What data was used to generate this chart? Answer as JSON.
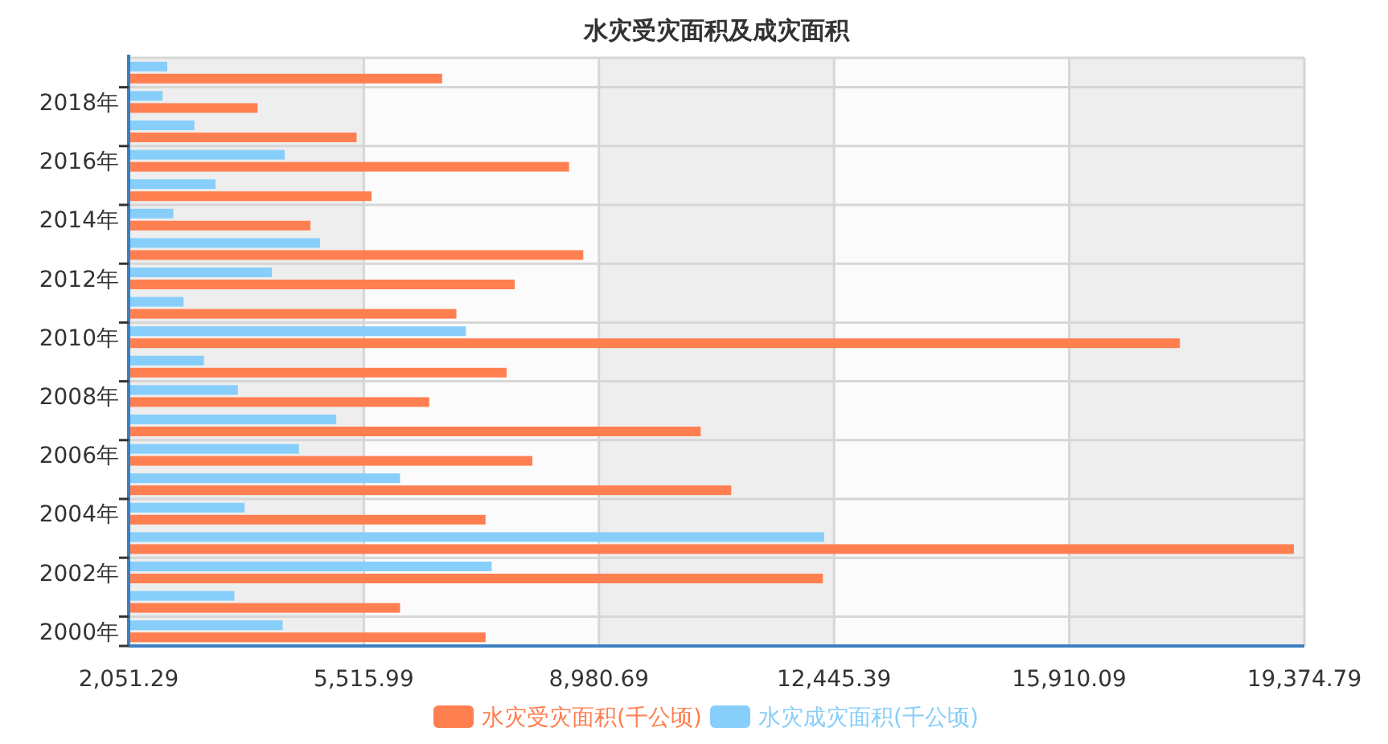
{
  "chart_data": {
    "type": "bar",
    "orientation": "horizontal",
    "title": "水灾受灾面积及成灾面积",
    "categories": [
      null,
      "2018年",
      null,
      "2016年",
      null,
      "2014年",
      null,
      "2012年",
      null,
      "2010年",
      null,
      "2008年",
      null,
      "2006年",
      null,
      "2004年",
      null,
      "2002年",
      null,
      "2000年"
    ],
    "series": [
      {
        "name": "水灾受灾面积(千公顷)",
        "color": "#ff7f50",
        "values": [
          6670,
          3950,
          5410,
          8540,
          5630,
          4730,
          8750,
          7740,
          6880,
          17540,
          7620,
          6480,
          10480,
          8000,
          10930,
          7310,
          19220,
          12280,
          6050,
          7310
        ]
      },
      {
        "name": "水灾成灾面积(千公顷)",
        "color": "#87cefa",
        "values": [
          2620,
          2550,
          3020,
          4350,
          3330,
          2710,
          4870,
          4160,
          2860,
          7020,
          3160,
          3660,
          5110,
          4560,
          6050,
          3760,
          12300,
          7400,
          3610,
          4320
        ]
      }
    ],
    "xlim": [
      2051.29,
      19374.79
    ],
    "xticks": [
      {
        "value": 2051.29,
        "label": "2,051.29"
      },
      {
        "value": 5515.99,
        "label": "5,515.99"
      },
      {
        "value": 8980.69,
        "label": "8,980.69"
      },
      {
        "value": 12445.39,
        "label": "12,445.39"
      },
      {
        "value": 15910.09,
        "label": "15,910.09"
      },
      {
        "value": 19374.79,
        "label": "19,374.79"
      }
    ],
    "grid": true,
    "legend": "bottom"
  }
}
